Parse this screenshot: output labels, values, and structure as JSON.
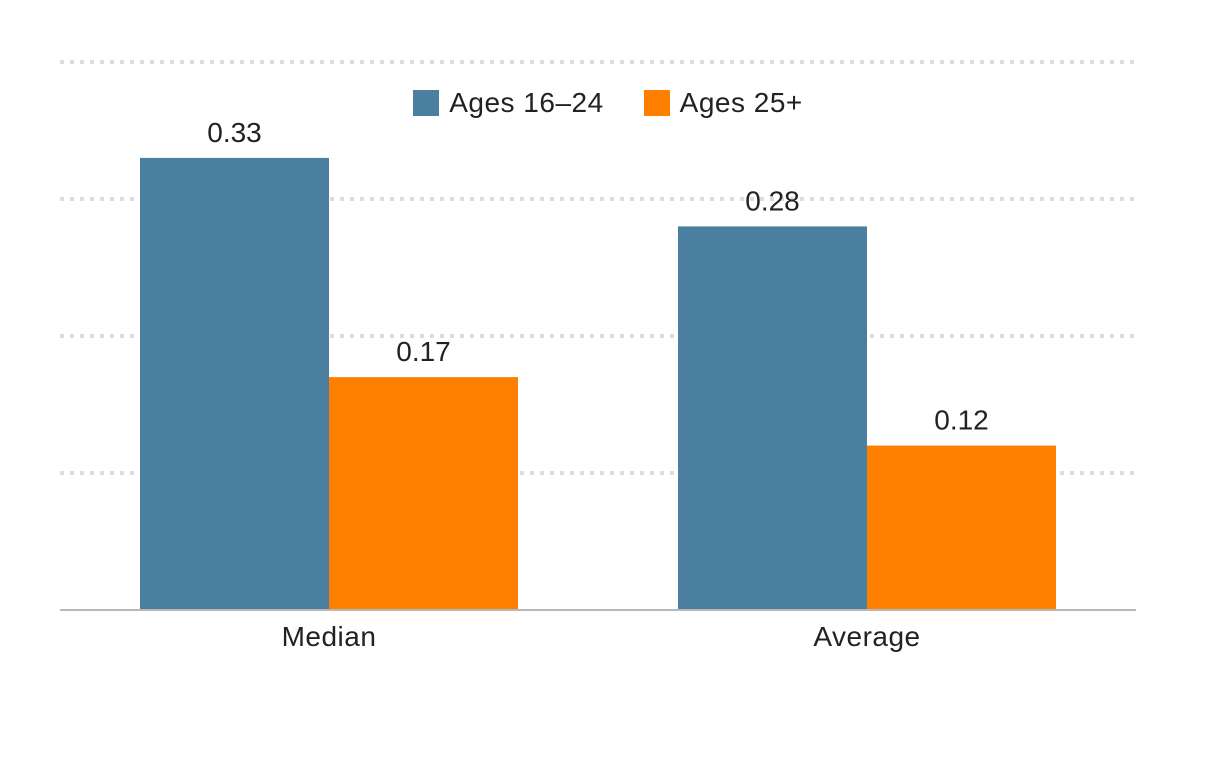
{
  "chart_data": {
    "type": "bar",
    "categories": [
      "Median",
      "Average"
    ],
    "series": [
      {
        "name": "Ages 16–24",
        "color": "#4a7fa0",
        "values": [
          0.33,
          0.28
        ],
        "labels": [
          "0.33",
          "0.28"
        ]
      },
      {
        "name": "Ages 25+",
        "color": "#ff8000",
        "values": [
          0.17,
          0.12
        ],
        "labels": [
          "0.17",
          "0.12"
        ]
      }
    ],
    "ylim": [
      0,
      0.4
    ],
    "gridlines": [
      0.1,
      0.2,
      0.3,
      0.4
    ],
    "grid": true,
    "grid_style": "dotted",
    "legend_position": "top-center",
    "title": "",
    "xlabel": "",
    "ylabel": ""
  }
}
